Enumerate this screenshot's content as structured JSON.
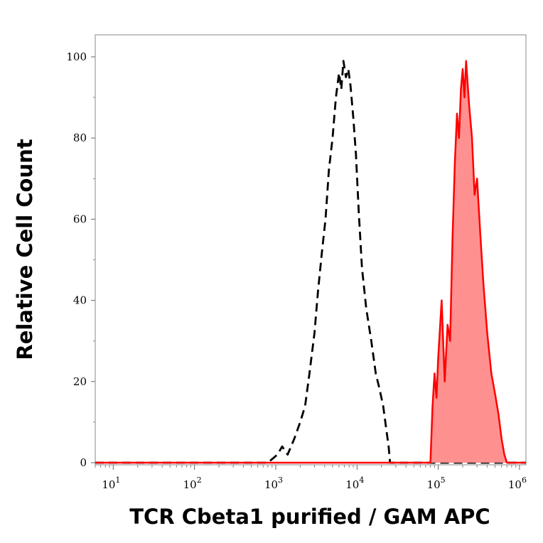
{
  "chart_data": {
    "type": "area",
    "xlabel": "TCR Cbeta1 purified / GAM APC",
    "ylabel": "Relative Cell Count",
    "x_scale": "log",
    "xlim": [
      6,
      1200000
    ],
    "ylim": [
      0,
      100
    ],
    "x_ticks": [
      {
        "value": 10,
        "base": "10",
        "exp": "1"
      },
      {
        "value": 100,
        "base": "10",
        "exp": "2"
      },
      {
        "value": 1000,
        "base": "10",
        "exp": "3"
      },
      {
        "value": 10000,
        "base": "10",
        "exp": "4"
      },
      {
        "value": 100000,
        "base": "10",
        "exp": "5"
      },
      {
        "value": 1000000,
        "base": "10",
        "exp": "6"
      }
    ],
    "y_ticks": [
      0,
      20,
      40,
      60,
      80,
      100
    ],
    "grid": false,
    "series": [
      {
        "style": "dashed-line",
        "color": "#000000",
        "x": [
          6,
          800,
          1050,
          1200,
          1400,
          1700,
          2000,
          2300,
          2600,
          3000,
          3300,
          3700,
          4100,
          4500,
          5000,
          5500,
          6000,
          6400,
          6800,
          7300,
          7800,
          8300,
          9000,
          9700,
          10500,
          11500,
          13000,
          15000,
          17000,
          19000,
          21000,
          23000,
          24500,
          25500,
          1200000
        ],
        "y": [
          0,
          0,
          2,
          4,
          2,
          6,
          10,
          14,
          22,
          32,
          42,
          52,
          60,
          72,
          80,
          90,
          96,
          92,
          99,
          95,
          97,
          93,
          85,
          76,
          62,
          48,
          38,
          30,
          22,
          18,
          14,
          8,
          4,
          0,
          0
        ]
      },
      {
        "style": "filled-area",
        "color": "#ff0000",
        "fill": "#ff9090",
        "x": [
          6,
          80000,
          85000,
          90000,
          95000,
          100000,
          110000,
          120000,
          130000,
          140000,
          150000,
          160000,
          170000,
          180000,
          190000,
          200000,
          210000,
          220000,
          240000,
          260000,
          280000,
          300000,
          330000,
          360000,
          400000,
          450000,
          500000,
          550000,
          600000,
          650000,
          700000,
          1200000
        ],
        "y": [
          0,
          0,
          14,
          22,
          16,
          26,
          40,
          20,
          34,
          30,
          56,
          74,
          86,
          80,
          92,
          97,
          90,
          99,
          88,
          80,
          66,
          70,
          56,
          44,
          32,
          22,
          17,
          12,
          6,
          2,
          0,
          0
        ]
      }
    ]
  }
}
